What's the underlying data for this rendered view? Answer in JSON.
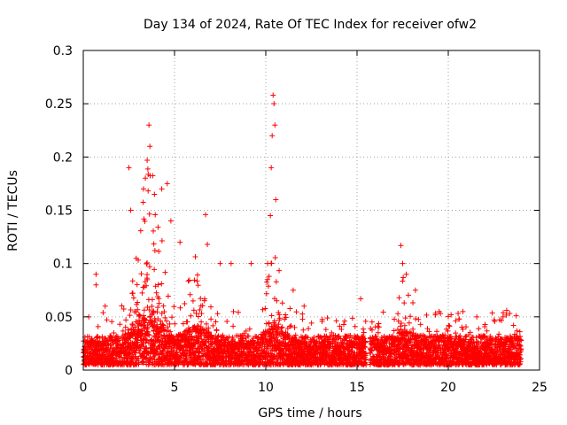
{
  "chart_data": {
    "type": "scatter",
    "title": "Day 134 of 2024, Rate Of TEC Index for receiver ofw2",
    "xlabel": "GPS time / hours",
    "ylabel": "ROTI / TECUs",
    "xlim": [
      0,
      25
    ],
    "ylim": [
      0,
      0.3
    ],
    "xticks": [
      0,
      5,
      10,
      15,
      20,
      25
    ],
    "xtick_labels": [
      "0",
      "5",
      "10",
      "15",
      "20",
      "25"
    ],
    "yticks": [
      0,
      0.05,
      0.1,
      0.15,
      0.2,
      0.25,
      0.3
    ],
    "ytick_labels": [
      "0",
      "0.05",
      "0.1",
      "0.15",
      "0.2",
      "0.25",
      "0.3"
    ],
    "grid": true,
    "marker": "+",
    "color": "#ff0000",
    "x_data_range": [
      0,
      24
    ],
    "baseline_band": [
      0.005,
      0.035
    ],
    "gap_hours": [
      15.5,
      15.7
    ],
    "notable_points": [
      {
        "x": 0.3,
        "y": 0.05
      },
      {
        "x": 0.7,
        "y": 0.09
      },
      {
        "x": 0.7,
        "y": 0.08
      },
      {
        "x": 1.2,
        "y": 0.06
      },
      {
        "x": 2.5,
        "y": 0.19
      },
      {
        "x": 2.6,
        "y": 0.15
      },
      {
        "x": 3.3,
        "y": 0.17
      },
      {
        "x": 3.5,
        "y": 0.197
      },
      {
        "x": 3.6,
        "y": 0.23
      },
      {
        "x": 3.65,
        "y": 0.21
      },
      {
        "x": 3.9,
        "y": 0.165
      },
      {
        "x": 4.3,
        "y": 0.17
      },
      {
        "x": 4.6,
        "y": 0.175
      },
      {
        "x": 4.8,
        "y": 0.14
      },
      {
        "x": 5.3,
        "y": 0.12
      },
      {
        "x": 6.7,
        "y": 0.146
      },
      {
        "x": 6.8,
        "y": 0.118
      },
      {
        "x": 7.5,
        "y": 0.1
      },
      {
        "x": 8.1,
        "y": 0.1
      },
      {
        "x": 9.2,
        "y": 0.1
      },
      {
        "x": 10.1,
        "y": 0.1
      },
      {
        "x": 10.25,
        "y": 0.145
      },
      {
        "x": 10.3,
        "y": 0.19
      },
      {
        "x": 10.35,
        "y": 0.22
      },
      {
        "x": 10.4,
        "y": 0.258
      },
      {
        "x": 10.45,
        "y": 0.25
      },
      {
        "x": 10.5,
        "y": 0.23
      },
      {
        "x": 10.55,
        "y": 0.16
      },
      {
        "x": 10.6,
        "y": 0.065
      },
      {
        "x": 11.5,
        "y": 0.075
      },
      {
        "x": 12.1,
        "y": 0.06
      },
      {
        "x": 15.2,
        "y": 0.067
      },
      {
        "x": 17.4,
        "y": 0.117
      },
      {
        "x": 17.5,
        "y": 0.1
      },
      {
        "x": 17.7,
        "y": 0.09
      },
      {
        "x": 18.2,
        "y": 0.075
      },
      {
        "x": 19.5,
        "y": 0.055
      },
      {
        "x": 20.8,
        "y": 0.055
      },
      {
        "x": 23.0,
        "y": 0.05
      },
      {
        "x": 23.2,
        "y": 0.056
      }
    ]
  }
}
